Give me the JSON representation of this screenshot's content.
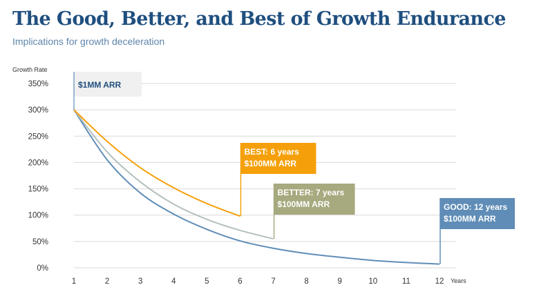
{
  "header": {
    "title": "The Good, Better, and Best of Growth Endurance",
    "subtitle": "Implications for growth deceleration"
  },
  "colors": {
    "title": "#1f4f7f",
    "subtitle": "#5d85aa",
    "best": "#f5a00a",
    "better": "#a7a97e",
    "better_line": "#b3c0bd",
    "good": "#5f8db7",
    "good_line": "#5f8db7",
    "start_box": "#f0f0f0",
    "grid": "#d9d9d9"
  },
  "chart_data": {
    "type": "line",
    "ylabel": "Growth Rate",
    "xlabel": "Years",
    "ylim": [
      0,
      350
    ],
    "xlim": [
      1,
      12
    ],
    "y_ticks": [
      "0%",
      "50%",
      "100%",
      "150%",
      "200%",
      "250%",
      "300%",
      "350%"
    ],
    "x_ticks": [
      "1",
      "2",
      "3",
      "4",
      "5",
      "6",
      "7",
      "8",
      "9",
      "10",
      "11",
      "12"
    ],
    "grid": true,
    "series": [
      {
        "key": "best",
        "x": [
          1,
          2,
          3,
          4,
          5,
          6
        ],
        "y": [
          300,
          240,
          190,
          152,
          122,
          98
        ]
      },
      {
        "key": "better",
        "x": [
          1,
          2,
          3,
          4,
          5,
          6,
          7
        ],
        "y": [
          300,
          220,
          163,
          121,
          92,
          71,
          55
        ]
      },
      {
        "key": "good",
        "x": [
          1,
          2,
          3,
          4,
          5,
          6,
          7,
          8,
          9,
          10,
          11,
          12
        ],
        "y": [
          300,
          205,
          142,
          102,
          73,
          51,
          37,
          27,
          20,
          14,
          10,
          7
        ]
      }
    ],
    "annotations": {
      "start": {
        "x": 1,
        "y": 300,
        "lines": [
          "$1MM ARR"
        ]
      },
      "best": {
        "x": 6,
        "y": 98,
        "lines": [
          "BEST: 6 years",
          "$100MM ARR"
        ]
      },
      "better": {
        "x": 7,
        "y": 55,
        "lines": [
          "BETTER: 7 years",
          "$100MM ARR"
        ]
      },
      "good": {
        "x": 12,
        "y": 7,
        "lines": [
          "GOOD: 12 years",
          "$100MM ARR"
        ]
      }
    }
  }
}
